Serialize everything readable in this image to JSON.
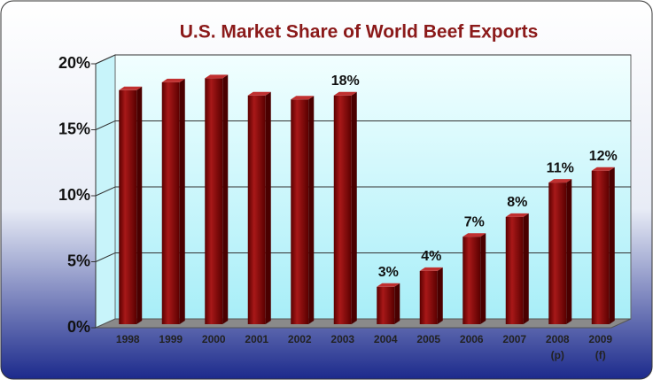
{
  "chart_data": {
    "type": "bar",
    "title": "U.S. Market Share of World Beef Exports",
    "categories": [
      "1998",
      "1999",
      "2000",
      "2001",
      "2002",
      "2003",
      "2004",
      "2005",
      "2006",
      "2007",
      "2008 (p)",
      "2009 (f)"
    ],
    "values": [
      18.0,
      18.6,
      18.9,
      17.6,
      17.3,
      17.6,
      3.1,
      4.3,
      6.9,
      8.4,
      11.0,
      11.9
    ],
    "value_labels": [
      null,
      null,
      null,
      null,
      null,
      "18%",
      "3%",
      "4%",
      "7%",
      "8%",
      "11%",
      "12%"
    ],
    "color": "#8b0a0a",
    "ylim": [
      0,
      20
    ],
    "yticks": [
      {
        "value": 0,
        "label": "0%"
      },
      {
        "value": 5,
        "label": "5%"
      },
      {
        "value": 10,
        "label": "10%"
      },
      {
        "value": 15,
        "label": "15%"
      },
      {
        "value": 20,
        "label": "20%"
      }
    ],
    "grid": true
  }
}
